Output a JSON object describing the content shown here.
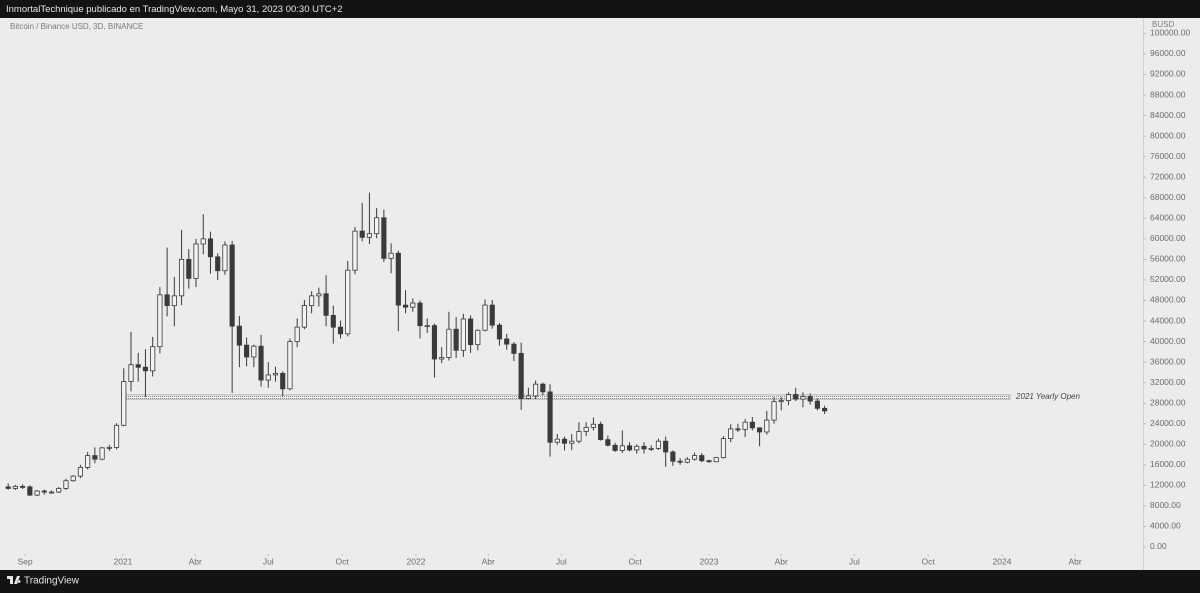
{
  "header": {
    "title": "InmortalTechnique publicado en TradingView.com, Mayo 31, 2023 00:30 UTC+2"
  },
  "footer": {
    "brand": "TradingView"
  },
  "chart_data": {
    "type": "candlestick",
    "title": "Bitcoin / Binance USD, 3D, BINANCE",
    "y_axis_label": "BUSD",
    "up_color": "#f4f3f1",
    "down_color": "#3a3a3a",
    "wick_color": "#3a3a3a",
    "xlim": [
      -23.7,
      1392.6
    ],
    "ylim": [
      -1170,
      103000
    ],
    "xticks": [
      {
        "value": 0,
        "label": "Sep"
      },
      {
        "value": 122,
        "label": "2021"
      },
      {
        "value": 212,
        "label": "Abr"
      },
      {
        "value": 303,
        "label": "Jul"
      },
      {
        "value": 395,
        "label": "Oct"
      },
      {
        "value": 487,
        "label": "2022"
      },
      {
        "value": 577,
        "label": "Abr"
      },
      {
        "value": 668,
        "label": "Jul"
      },
      {
        "value": 760,
        "label": "Oct"
      },
      {
        "value": 852,
        "label": "2023"
      },
      {
        "value": 942,
        "label": "Abr"
      },
      {
        "value": 1033,
        "label": "Jul"
      },
      {
        "value": 1125,
        "label": "Oct"
      },
      {
        "value": 1217,
        "label": "2024"
      },
      {
        "value": 1308,
        "label": "Abr"
      }
    ],
    "yticks": [
      {
        "value": 0,
        "label": "0.00"
      },
      {
        "value": 4000,
        "label": "4000.00"
      },
      {
        "value": 8000,
        "label": "8000.00"
      },
      {
        "value": 12000,
        "label": "12000.00"
      },
      {
        "value": 16000,
        "label": "16000.00"
      },
      {
        "value": 20000,
        "label": "20000.00"
      },
      {
        "value": 24000,
        "label": "24000.00"
      },
      {
        "value": 28000,
        "label": "28000.00"
      },
      {
        "value": 32000,
        "label": "32000.00"
      },
      {
        "value": 36000,
        "label": "36000.00"
      },
      {
        "value": 40000,
        "label": "40000.00"
      },
      {
        "value": 44000,
        "label": "44000.00"
      },
      {
        "value": 48000,
        "label": "48000.00"
      },
      {
        "value": 52000,
        "label": "52000.00"
      },
      {
        "value": 56000,
        "label": "56000.00"
      },
      {
        "value": 60000,
        "label": "60000.00"
      },
      {
        "value": 64000,
        "label": "64000.00"
      },
      {
        "value": 68000,
        "label": "68000.00"
      },
      {
        "value": 72000,
        "label": "72000.00"
      },
      {
        "value": 76000,
        "label": "76000.00"
      },
      {
        "value": 80000,
        "label": "80000.00"
      },
      {
        "value": 84000,
        "label": "84000.00"
      },
      {
        "value": 88000,
        "label": "88000.00"
      },
      {
        "value": 92000,
        "label": "92000.00"
      },
      {
        "value": 96000,
        "label": "96000.00"
      },
      {
        "value": 100000,
        "label": "100000.00"
      }
    ],
    "band": {
      "label": "2021 Yearly Open",
      "from": 122,
      "to": 1227,
      "low": 28800,
      "high": 29600
    },
    "x": [
      -21,
      -12,
      -3,
      6,
      15,
      24,
      33,
      42,
      51,
      60,
      69,
      78,
      87,
      96,
      105,
      114,
      123,
      132,
      141,
      150,
      159,
      168,
      177,
      186,
      195,
      204,
      213,
      222,
      231,
      240,
      249,
      258,
      267,
      276,
      285,
      294,
      303,
      312,
      321,
      330,
      339,
      348,
      357,
      366,
      375,
      384,
      393,
      402,
      411,
      420,
      429,
      438,
      447,
      456,
      465,
      474,
      483,
      492,
      501,
      510,
      519,
      528,
      537,
      546,
      555,
      564,
      573,
      582,
      591,
      600,
      609,
      618,
      627,
      636,
      645,
      654,
      663,
      672,
      681,
      690,
      699,
      708,
      717,
      726,
      735,
      744,
      753,
      762,
      771,
      780,
      789,
      798,
      807,
      816,
      825,
      834,
      843,
      852,
      861,
      870,
      879,
      888,
      897,
      906,
      915,
      924,
      933,
      942,
      951,
      960,
      969,
      978,
      987,
      996
    ],
    "open": [
      11700,
      11400,
      11800,
      11700,
      10100,
      10900,
      10700,
      10700,
      11400,
      12900,
      13800,
      15500,
      17800,
      17100,
      19300,
      19400,
      23700,
      32200,
      35500,
      35000,
      34300,
      39000,
      49100,
      47000,
      48900,
      56000,
      52300,
      59000,
      60000,
      56500,
      53800,
      58800,
      43000,
      39300,
      37000,
      39100,
      32500,
      33500,
      33800,
      30800,
      40000,
      42800,
      47000,
      48900,
      49300,
      45100,
      42800,
      41500,
      53900,
      61500,
      60300,
      61000,
      64100,
      56200,
      57200,
      47100,
      46700,
      47500,
      43100,
      43100,
      36600,
      36900,
      42400,
      38300,
      44400,
      39400,
      42200,
      47100,
      43200,
      40500,
      39500,
      37700,
      28900,
      29400,
      31700,
      30200,
      20400,
      21000,
      20200,
      20600,
      22500,
      23300,
      23900,
      20900,
      19800,
      18800,
      19700,
      18900,
      19600,
      19100,
      19200,
      20600,
      18500,
      16700,
      16500,
      17100,
      17800,
      16800,
      16600,
      17400,
      21100,
      23000,
      22900,
      24300,
      23200,
      22400,
      24700,
      28300,
      28500,
      29700,
      28800,
      29300,
      28400,
      27000
    ],
    "high": [
      12400,
      12100,
      12200,
      12000,
      11100,
      11200,
      11000,
      11700,
      13300,
      14000,
      16000,
      18500,
      19400,
      19500,
      19900,
      24100,
      34800,
      41900,
      37800,
      38500,
      40900,
      50600,
      58300,
      52600,
      61700,
      58000,
      60000,
      64800,
      61400,
      57200,
      59500,
      59600,
      45000,
      40800,
      39400,
      41300,
      36000,
      35100,
      34200,
      40600,
      44500,
      48100,
      49800,
      50500,
      52900,
      47000,
      44100,
      55700,
      62300,
      67000,
      69000,
      66000,
      65700,
      59100,
      57700,
      50000,
      48400,
      48000,
      44500,
      43500,
      38900,
      45800,
      44800,
      45400,
      45100,
      42400,
      48200,
      48100,
      43600,
      41500,
      39900,
      39800,
      31000,
      32400,
      32000,
      31700,
      22000,
      21500,
      22000,
      24300,
      24300,
      25200,
      24400,
      21700,
      20300,
      22700,
      20400,
      20000,
      20400,
      19800,
      21100,
      21500,
      18800,
      17300,
      17500,
      18400,
      18300,
      17000,
      17500,
      21600,
      23900,
      24000,
      24900,
      25300,
      23300,
      26500,
      29200,
      29200,
      30100,
      31000,
      30100,
      29900,
      28900,
      27500
    ],
    "low": [
      11200,
      11100,
      11300,
      9900,
      9900,
      10200,
      10400,
      10500,
      11100,
      12700,
      13400,
      15100,
      16300,
      16900,
      18700,
      19000,
      23500,
      30300,
      32200,
      29200,
      33200,
      37700,
      44900,
      43000,
      47100,
      50300,
      50600,
      57000,
      53200,
      52000,
      53000,
      30000,
      35000,
      35200,
      35000,
      31200,
      31000,
      32200,
      29300,
      30500,
      38900,
      42400,
      45500,
      46800,
      43000,
      39600,
      40600,
      41000,
      53100,
      59500,
      59000,
      60100,
      55500,
      53300,
      42000,
      45500,
      45800,
      40600,
      41700,
      33000,
      35800,
      36300,
      36800,
      37000,
      37800,
      38300,
      42000,
      42500,
      39200,
      38400,
      36200,
      26700,
      28700,
      28800,
      29500,
      17600,
      19900,
      18800,
      18900,
      20200,
      21600,
      22700,
      20700,
      19600,
      18500,
      18300,
      18600,
      18200,
      18200,
      18700,
      18900,
      15600,
      15800,
      16000,
      16300,
      16800,
      16500,
      16400,
      16500,
      17200,
      20400,
      22400,
      21400,
      22700,
      19600,
      21900,
      24000,
      26600,
      27600,
      28400,
      27200,
      27700,
      26600,
      25900
    ],
    "close": [
      11400,
      11800,
      11700,
      10100,
      10900,
      10700,
      10700,
      11400,
      12900,
      13800,
      15500,
      17800,
      17100,
      19300,
      19400,
      23700,
      32200,
      35500,
      35000,
      34300,
      39000,
      49100,
      47000,
      48900,
      56000,
      52300,
      59000,
      60000,
      56500,
      53800,
      58800,
      43000,
      39300,
      37000,
      39100,
      32500,
      33500,
      33800,
      30800,
      40000,
      42800,
      47000,
      48900,
      49300,
      45100,
      42800,
      41500,
      53900,
      61500,
      60300,
      61000,
      64100,
      56200,
      57200,
      47100,
      46700,
      47500,
      43100,
      43100,
      36600,
      36900,
      42400,
      38300,
      44400,
      39400,
      42200,
      47100,
      43200,
      40500,
      39500,
      37700,
      28900,
      29400,
      31700,
      30200,
      20400,
      21000,
      20200,
      20600,
      22500,
      23300,
      23900,
      20900,
      19800,
      18800,
      19700,
      18900,
      19600,
      19100,
      19200,
      20600,
      18500,
      16700,
      16500,
      17100,
      17800,
      16800,
      16600,
      17400,
      21100,
      23000,
      22900,
      24300,
      23200,
      22400,
      24700,
      28300,
      28500,
      29700,
      28800,
      29300,
      28400,
      27000,
      26500
    ]
  }
}
